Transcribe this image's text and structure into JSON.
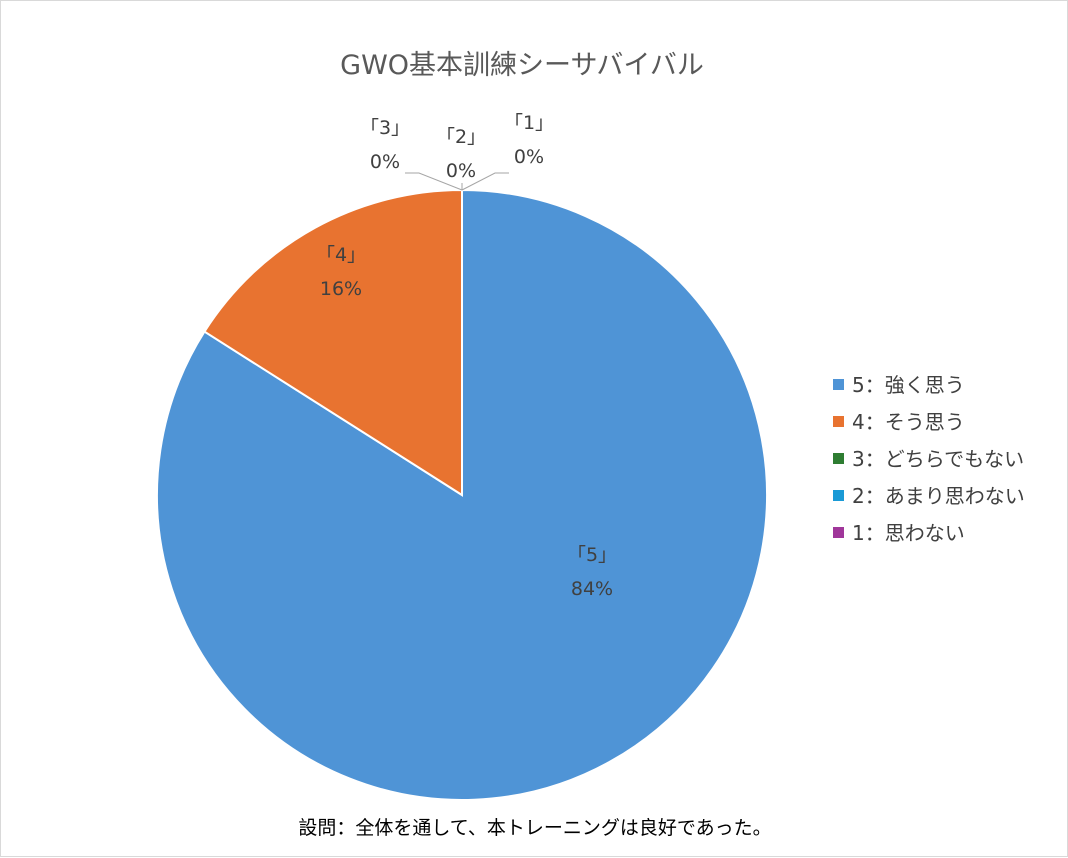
{
  "chart_data": {
    "type": "pie",
    "title": "GWO基本訓練シーサバイバル",
    "categories": [
      "5：強く思う",
      "4：そう思う",
      "3：どちらでもない",
      "2：あまり思わない",
      "1：思わない"
    ],
    "values": [
      84,
      16,
      0,
      0,
      0
    ],
    "slice_labels": [
      "「5」",
      "「4」",
      "「3」",
      "「2」",
      "「1」"
    ],
    "percent_labels": [
      "84%",
      "16%",
      "0%",
      "0%",
      "0%"
    ],
    "colors": [
      "#4f94d6",
      "#e87330",
      "#2e7d32",
      "#1a9ad6",
      "#a0369a"
    ],
    "legend_position": "right"
  },
  "caption": "設問：全体を通して、本トレーニングは良好であった。"
}
